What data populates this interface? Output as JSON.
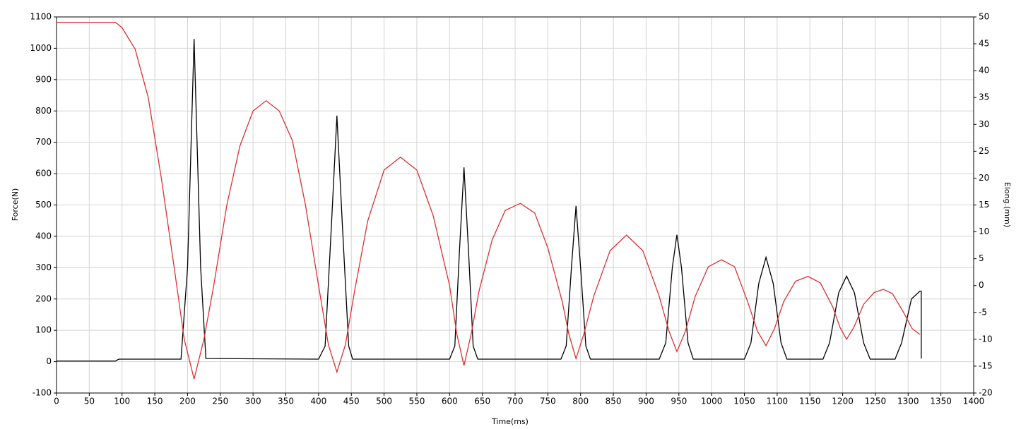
{
  "chart_data": {
    "type": "line",
    "xlabel": "Time(ms)",
    "ylabel": "Force(N)",
    "y2label": "Elong.(mm)",
    "xlim": [
      0,
      1400
    ],
    "xticks": [
      0,
      50,
      100,
      150,
      200,
      250,
      300,
      350,
      400,
      450,
      500,
      550,
      600,
      650,
      700,
      750,
      800,
      850,
      900,
      950,
      1000,
      1050,
      1100,
      1150,
      1200,
      1250,
      1300,
      1350,
      1400
    ],
    "ylim": [
      -100,
      1100
    ],
    "yticks": [
      -100,
      0,
      100,
      200,
      300,
      400,
      500,
      600,
      700,
      800,
      900,
      1000,
      1100
    ],
    "y2lim": [
      -20,
      50
    ],
    "y2ticks": [
      -20,
      -15,
      -10,
      -5,
      0,
      5,
      10,
      15,
      20,
      25,
      30,
      35,
      40,
      45,
      50
    ],
    "grid": true,
    "series": [
      {
        "color": "#000000",
        "axis": "y",
        "x": [
          0,
          90,
          95,
          190,
          200,
          210,
          220,
          228,
          400,
          410,
          420,
          428,
          436,
          446,
          452,
          600,
          608,
          615,
          622,
          629,
          636,
          643,
          770,
          778,
          786,
          793,
          800,
          808,
          815,
          920,
          930,
          940,
          947,
          954,
          964,
          972,
          1050,
          1060,
          1072,
          1083,
          1094,
          1106,
          1115,
          1170,
          1180,
          1194,
          1206,
          1218,
          1232,
          1242,
          1280,
          1290,
          1305,
          1318,
          1320,
          1320
        ],
        "values": [
          2,
          2,
          8,
          8,
          300,
          1030,
          300,
          10,
          8,
          50,
          450,
          785,
          450,
          50,
          8,
          8,
          50,
          350,
          620,
          350,
          50,
          8,
          8,
          50,
          300,
          497,
          300,
          50,
          8,
          8,
          60,
          300,
          405,
          300,
          60,
          8,
          8,
          60,
          250,
          333,
          250,
          60,
          8,
          8,
          60,
          220,
          273,
          220,
          60,
          8,
          8,
          60,
          200,
          225,
          225,
          10
        ]
      },
      {
        "color": "#e03030",
        "axis": "y2",
        "x": [
          0,
          90,
          100,
          120,
          140,
          160,
          180,
          195,
          210,
          225,
          240,
          260,
          280,
          300,
          320,
          340,
          360,
          380,
          400,
          415,
          428,
          441,
          455,
          475,
          500,
          525,
          550,
          575,
          600,
          611,
          622,
          633,
          645,
          665,
          685,
          708,
          730,
          750,
          772,
          782,
          793,
          805,
          820,
          845,
          870,
          895,
          920,
          935,
          947,
          960,
          975,
          995,
          1015,
          1035,
          1055,
          1070,
          1083,
          1096,
          1110,
          1128,
          1147,
          1166,
          1185,
          1196,
          1206,
          1217,
          1232,
          1248,
          1262,
          1276,
          1293,
          1306,
          1318
        ],
        "values": [
          49,
          49,
          48,
          44,
          35,
          20,
          3,
          -10,
          -17.4,
          -10,
          0,
          15,
          26,
          32.5,
          34.4,
          32.5,
          27,
          15,
          0,
          -11,
          -16.1,
          -11,
          -1,
          12,
          21.5,
          23.9,
          21.5,
          13,
          0,
          -9,
          -14.9,
          -9,
          -1,
          8.5,
          14,
          15.3,
          13.5,
          7,
          -3,
          -9,
          -13.6,
          -9,
          -2,
          6.5,
          9.4,
          6.5,
          -2,
          -8.5,
          -12.3,
          -8.5,
          -2,
          3.5,
          4.8,
          3.5,
          -3,
          -8.5,
          -11.2,
          -8,
          -3,
          0.8,
          1.7,
          0.5,
          -4,
          -7.8,
          -10,
          -7.8,
          -3.5,
          -1.3,
          -0.7,
          -1.5,
          -5,
          -8,
          -9.1
        ]
      }
    ]
  }
}
